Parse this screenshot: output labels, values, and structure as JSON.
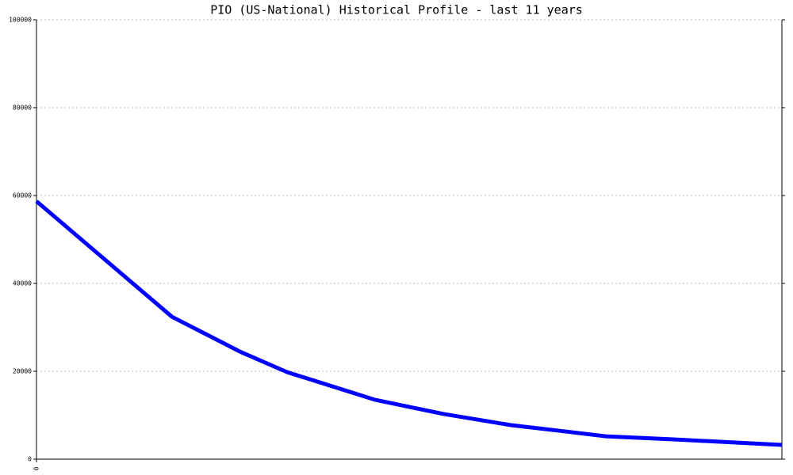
{
  "chart_data": {
    "type": "line",
    "title": "PIO (US-National) Historical Profile - last 11 years",
    "x": [
      0,
      2,
      3,
      3.7,
      5,
      6,
      7,
      7.7,
      8.4,
      9.4,
      11
    ],
    "series": [
      {
        "name": "PIO",
        "color": "#0000ff",
        "values": [
          58700,
          32400,
          24500,
          19800,
          13500,
          10300,
          7750,
          6500,
          5200,
          4500,
          3250
        ]
      }
    ],
    "xlim": [
      0,
      11
    ],
    "xticks": [
      0
    ],
    "ylim": [
      0,
      100000
    ],
    "yticks": [
      0,
      20000,
      40000,
      60000,
      80000,
      100000
    ],
    "grid": true
  }
}
